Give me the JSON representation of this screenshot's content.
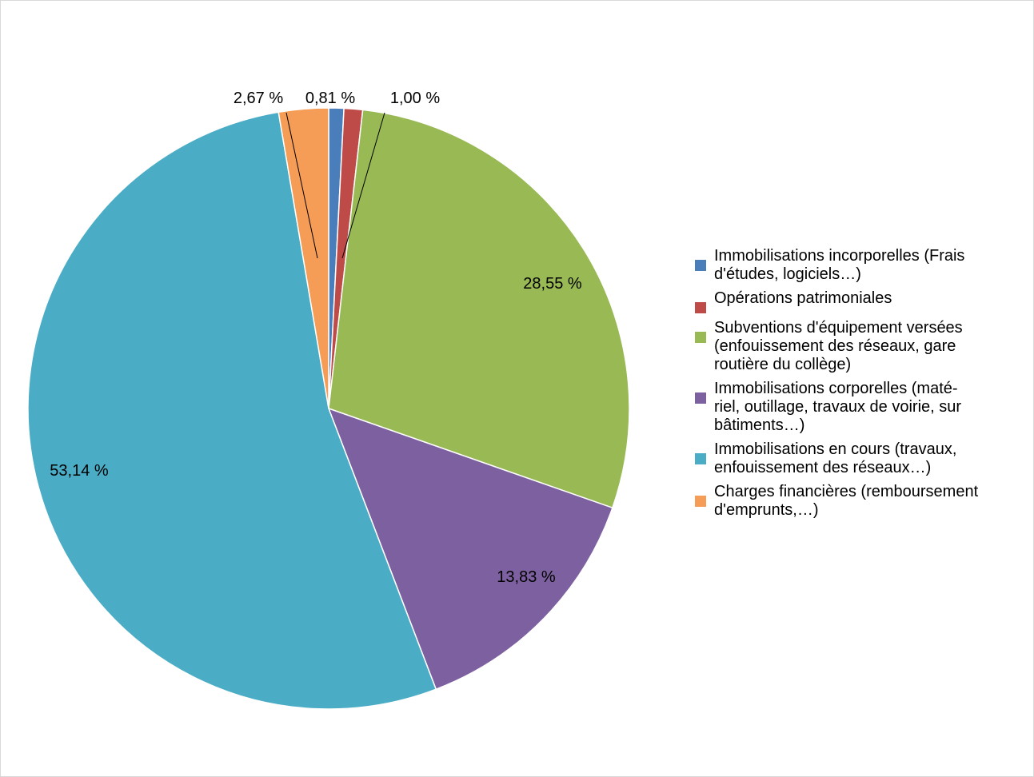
{
  "chart_data": {
    "type": "pie",
    "title": "",
    "slices": [
      {
        "label": "Immobilisations incorporelles (Frais d'études, logiciels…)",
        "value": 0.81,
        "value_label": "0,81 %",
        "color": "#4a7ebb"
      },
      {
        "label": "Opérations patrimoniales",
        "value": 1.0,
        "value_label": "1,00 %",
        "color": "#be4b48"
      },
      {
        "label": "Subventions d'équipement versées (enfouissement des réseaux, gare routière du collège)",
        "value": 28.55,
        "value_label": "28,55 %",
        "color": "#98b954"
      },
      {
        "label": "Immobilisations corporelles (maté-riel, outillage, travaux de voirie, sur bâtiments…)",
        "value": 13.83,
        "value_label": "13,83 %",
        "color": "#7d60a0"
      },
      {
        "label": "Immobilisations en cours (travaux, enfouissement des réseaux…)",
        "value": 53.14,
        "value_label": "53,14 %",
        "color": "#4aacc5"
      },
      {
        "label": "Charges financières (remboursement d'emprunts,…)",
        "value": 2.67,
        "value_label": "2,67 %",
        "color": "#f59d56"
      }
    ],
    "legend_position": "right",
    "start_angle": "top",
    "direction": "clockwise"
  },
  "legend": {
    "items": [
      {
        "label": "Immobilisations incorporelles (Frais\nd'études, logiciels…)",
        "color": "#4a7ebb"
      },
      {
        "label": "Opérations patrimoniales",
        "color": "#be4b48"
      },
      {
        "label": "Subventions d'équipement versées\n(enfouissement des réseaux, gare\nroutière du collège)",
        "color": "#98b954"
      },
      {
        "label": "Immobilisations corporelles (maté-\nriel, outillage, travaux de voirie, sur\nbâtiments…)",
        "color": "#7d60a0"
      },
      {
        "label": "Immobilisations en cours (travaux,\nenfouissement des réseaux…)",
        "color": "#4aacc5"
      },
      {
        "label": "Charges financières (remboursement\nd'emprunts,…)",
        "color": "#f59d56"
      }
    ]
  }
}
